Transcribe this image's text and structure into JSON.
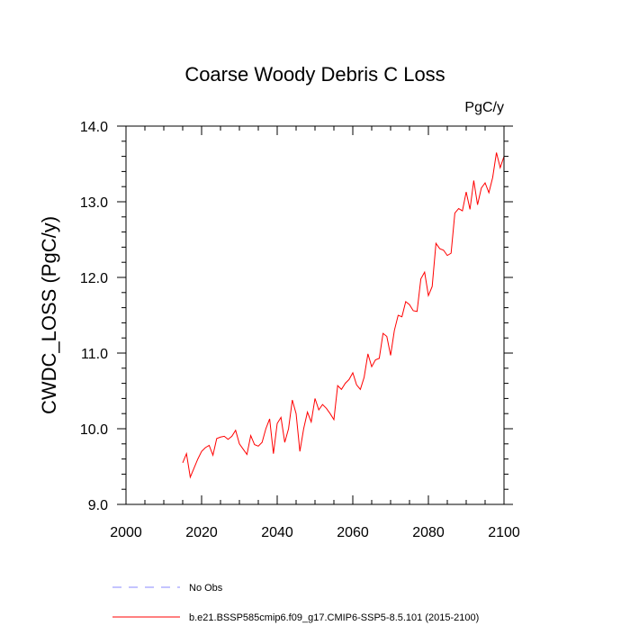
{
  "chart_data": {
    "type": "line",
    "title": "Coarse Woody Debris C Loss",
    "units_label": "PgC/y",
    "ylabel": "CWDC_LOSS  (PgC/y)",
    "xlabel": "",
    "xlim": [
      2000,
      2100
    ],
    "ylim": [
      9.0,
      14.0
    ],
    "x_ticks": [
      "2000",
      "2020",
      "2040",
      "2060",
      "2080",
      "2100"
    ],
    "y_ticks": [
      "9.0",
      "10.0",
      "11.0",
      "12.0",
      "13.0",
      "14.0"
    ],
    "grid": false,
    "legend_position": "bottom-left",
    "series": [
      {
        "name": "b.e21.BSSP585cmip6.f09_g17.CMIP6-SSP5-8.5.101 (2015-2100)",
        "color": "#ff0000",
        "x": [
          2015,
          2016,
          2017,
          2018,
          2019,
          2020,
          2021,
          2022,
          2023,
          2024,
          2025,
          2026,
          2027,
          2028,
          2029,
          2030,
          2031,
          2032,
          2033,
          2034,
          2035,
          2036,
          2037,
          2038,
          2039,
          2040,
          2041,
          2042,
          2043,
          2044,
          2045,
          2046,
          2047,
          2048,
          2049,
          2050,
          2051,
          2052,
          2053,
          2054,
          2055,
          2056,
          2057,
          2058,
          2059,
          2060,
          2061,
          2062,
          2063,
          2064,
          2065,
          2066,
          2067,
          2068,
          2069,
          2070,
          2071,
          2072,
          2073,
          2074,
          2075,
          2076,
          2077,
          2078,
          2079,
          2080,
          2081,
          2082,
          2083,
          2084,
          2085,
          2086,
          2087,
          2088,
          2089,
          2090,
          2091,
          2092,
          2093,
          2094,
          2095,
          2096,
          2097,
          2098,
          2099,
          2100
        ],
        "values": [
          9.55,
          9.67,
          9.36,
          9.48,
          9.6,
          9.7,
          9.75,
          9.78,
          9.65,
          9.87,
          9.89,
          9.9,
          9.86,
          9.9,
          9.98,
          9.8,
          9.73,
          9.66,
          9.91,
          9.79,
          9.77,
          9.82,
          10.0,
          10.13,
          9.67,
          10.07,
          10.15,
          9.82,
          10.0,
          10.38,
          10.2,
          9.7,
          10.0,
          10.22,
          10.09,
          10.4,
          10.25,
          10.32,
          10.27,
          10.2,
          10.12,
          10.57,
          10.52,
          10.6,
          10.65,
          10.74,
          10.58,
          10.52,
          10.68,
          10.99,
          10.82,
          10.91,
          10.93,
          11.26,
          11.22,
          10.97,
          11.3,
          11.5,
          11.48,
          11.68,
          11.64,
          11.56,
          11.55,
          11.98,
          12.07,
          11.76,
          11.88,
          12.45,
          12.38,
          12.36,
          12.29,
          12.32,
          12.85,
          12.91,
          12.88,
          13.13,
          12.9,
          13.28,
          12.96,
          13.18,
          13.25,
          13.12,
          13.32,
          13.65,
          13.45,
          13.6
        ]
      }
    ],
    "reference_series": {
      "name": "No Obs",
      "color": "#8888ff",
      "style": "dashed"
    }
  }
}
